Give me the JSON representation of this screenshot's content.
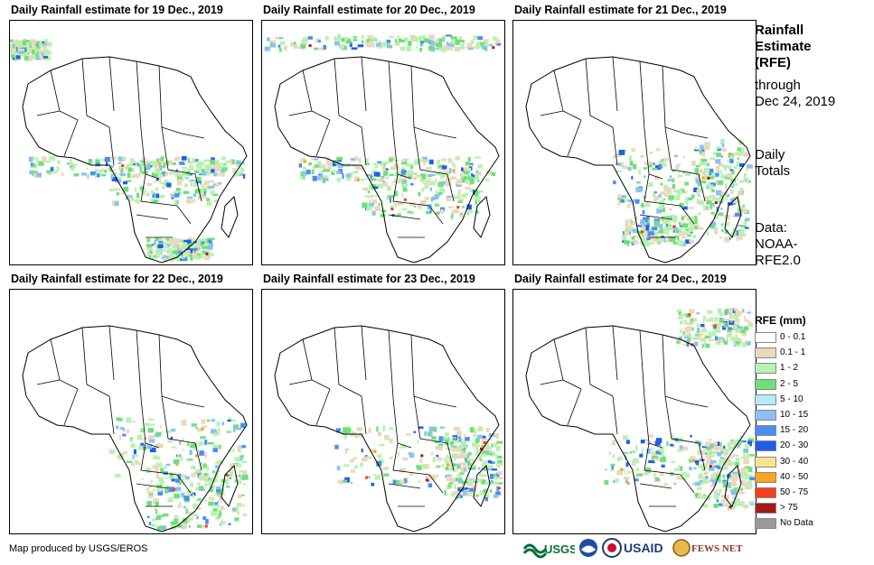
{
  "panels": [
    {
      "title": "Daily Rainfall estimate for 19 Dec., 2019"
    },
    {
      "title": "Daily Rainfall estimate for 20 Dec., 2019"
    },
    {
      "title": "Daily Rainfall estimate for 21 Dec., 2019"
    },
    {
      "title": "Daily Rainfall estimate for 22 Dec., 2019"
    },
    {
      "title": "Daily Rainfall estimate for 23 Dec., 2019"
    },
    {
      "title": "Daily Rainfall estimate for 24 Dec., 2019"
    }
  ],
  "side": {
    "title_1": "Rainfall",
    "title_2": "Estimate",
    "title_3": "(RFE)",
    "through": "through",
    "date": "Dec 24, 2019",
    "daily": "Daily",
    "totals": "Totals",
    "data_label": "Data:",
    "data_1": "NOAA-",
    "data_2": "RFE2.0"
  },
  "legend": {
    "title": "RFE (mm)",
    "items": [
      {
        "label": "0 - 0.1",
        "color": "#ffffff"
      },
      {
        "label": "0.1 - 1",
        "color": "#ead8bd"
      },
      {
        "label": "1 - 2",
        "color": "#b8f2b0"
      },
      {
        "label": "2 - 5",
        "color": "#6ee07a"
      },
      {
        "label": "5 - 10",
        "color": "#b4ecf7"
      },
      {
        "label": "10 - 15",
        "color": "#8ec0f5"
      },
      {
        "label": "15 - 20",
        "color": "#4a8ff0"
      },
      {
        "label": "20 - 30",
        "color": "#1e5fe6"
      },
      {
        "label": "30 - 40",
        "color": "#fbe390"
      },
      {
        "label": "40 - 50",
        "color": "#f7a51e"
      },
      {
        "label": "50 - 75",
        "color": "#f0401e"
      },
      {
        "label": "> 75",
        "color": "#a31a1a"
      },
      {
        "label": "No Data",
        "color": "#999999"
      }
    ]
  },
  "footer": "Map produced by USGS/EROS",
  "logos": {
    "usgs": "USGS",
    "usaid": "USAID",
    "fews": "FEWS NET"
  }
}
